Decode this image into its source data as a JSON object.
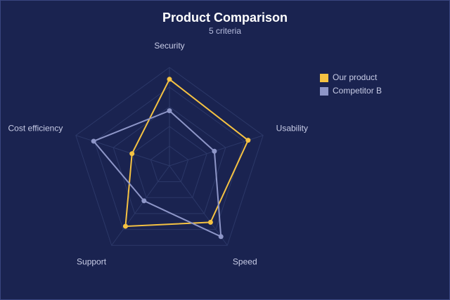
{
  "chart_data": {
    "type": "radar",
    "title": "Product Comparison",
    "subtitle": "5 criteria",
    "categories": [
      "Security",
      "Usability",
      "Speed",
      "Support",
      "Cost efficiency"
    ],
    "series": [
      {
        "name": "Our product",
        "color": "#f5c242",
        "values": [
          88,
          84,
          71,
          76,
          40
        ]
      },
      {
        "name": "Competitor B",
        "color": "#8e96c8",
        "values": [
          56,
          48,
          89,
          44,
          81
        ]
      }
    ],
    "rlim": [
      0,
      100
    ],
    "rticks": [
      20,
      40,
      60,
      80,
      100
    ],
    "grid": true,
    "legend": "top-right"
  }
}
